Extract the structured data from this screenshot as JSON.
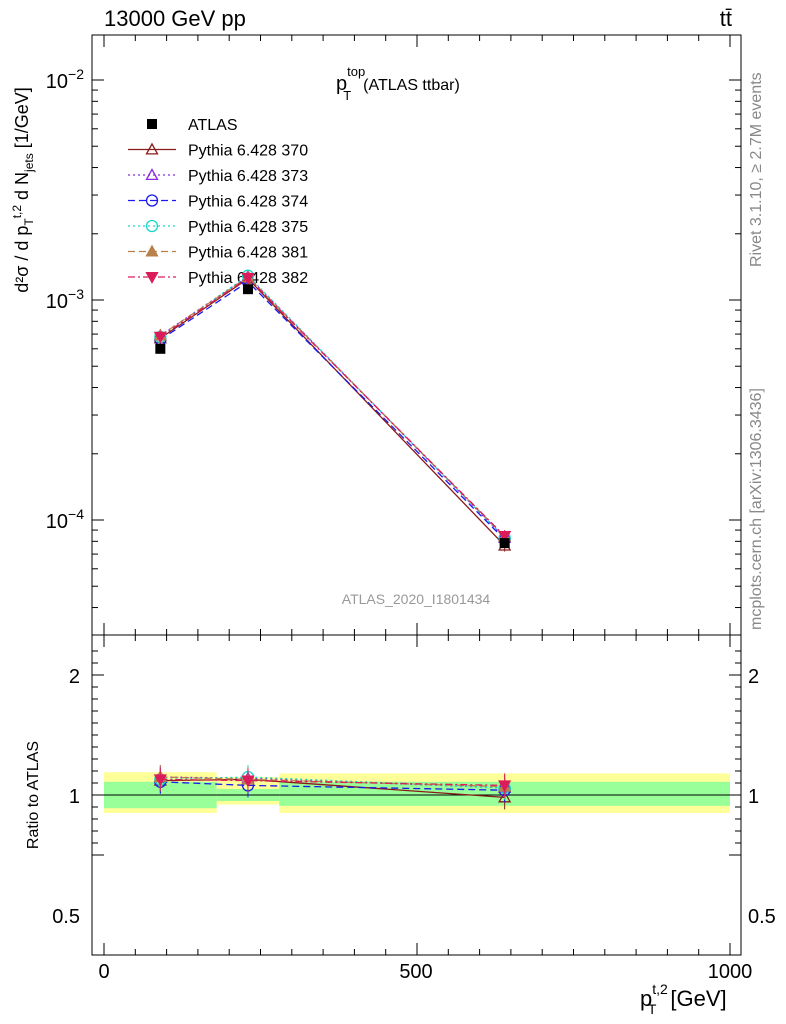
{
  "header": {
    "left": "13000 GeV pp",
    "right": "tt̄"
  },
  "side_text": {
    "rivet": "Rivet 3.1.10, ≥ 2.7M events",
    "mcplots": "mcplots.cern.ch [arXiv:1306.3436]"
  },
  "watermark": "ATLAS_2020_I1801434",
  "main_title": {
    "base": "p",
    "sup": "top",
    "sub": "T",
    "suffix": "(ATLAS ttbar)"
  },
  "main_ylabel": "d^2σ/d p_T^{t,2} d N_jets  [1/GeV]",
  "ratio_ylabel": "Ratio to ATLAS",
  "xlabel": {
    "base": "p",
    "sup": "t,2",
    "sub": "T",
    "unit": "[GeV]"
  },
  "colors": {
    "band_inner": "#99ff99",
    "band_outer": "#ffff99"
  },
  "chart_data": [
    {
      "type": "line",
      "panel": "main",
      "xlim": [
        -20,
        1020
      ],
      "ylim": [
        3e-05,
        0.016
      ],
      "log_y": true,
      "x_ticks": [
        "0",
        "500",
        "1000"
      ],
      "y_ticks": [
        "10^-4",
        "10^-3",
        "10^-2"
      ],
      "legend_position": "top-left",
      "x": [
        90,
        230,
        640
      ],
      "data": {
        "name": "ATLAS",
        "values": [
          0.0006,
          0.00112,
          7.85e-05
        ],
        "color": "#000000"
      },
      "series": [
        {
          "name": "Pythia 6.428 370",
          "color": "#8b1a1a",
          "marker": "triangle-open",
          "dash": "",
          "values": [
            0.00067,
            0.00125,
            7.65e-05
          ]
        },
        {
          "name": "Pythia 6.428 373",
          "color": "#8a2be2",
          "marker": "triangle-open",
          "dash": "2,3",
          "values": [
            0.00069,
            0.00128,
            8.3e-05
          ]
        },
        {
          "name": "Pythia 6.428 374",
          "color": "#1a1aee",
          "marker": "circle-open",
          "dash": "7,4",
          "values": [
            0.00066,
            0.00121,
            8.15e-05
          ]
        },
        {
          "name": "Pythia 6.428 375",
          "color": "#1ad8c8",
          "marker": "circle-open",
          "dash": "2,3",
          "values": [
            0.00068,
            0.00129,
            8.3e-05
          ]
        },
        {
          "name": "Pythia 6.428 381",
          "color": "#b8804a",
          "marker": "triangle-filled",
          "dash": "7,4",
          "values": [
            0.00069,
            0.00127,
            8.4e-05
          ]
        },
        {
          "name": "Pythia 6.428 382",
          "color": "#dc1c5a",
          "marker": "triangle-down-filled",
          "dash": "7,3,2,3",
          "values": [
            0.00068,
            0.00126,
            8.45e-05
          ]
        }
      ]
    },
    {
      "type": "line",
      "panel": "ratio",
      "xlim": [
        -20,
        1020
      ],
      "ylim": [
        0.4,
        2.3
      ],
      "x_ticks": [
        "0",
        "500",
        "1000"
      ],
      "y_ticks": [
        "0.5",
        "1",
        "2"
      ],
      "x": [
        90,
        230,
        640
      ],
      "reference": 1.0,
      "bands": [
        {
          "x_range": [
            0,
            180
          ],
          "inner": [
            0.89,
            1.11
          ],
          "outer": [
            0.85,
            1.19
          ]
        },
        {
          "x_range": [
            180,
            280
          ],
          "inner": [
            0.95,
            1.05
          ],
          "outer": [
            0.92,
            1.15
          ]
        },
        {
          "x_range": [
            280,
            1000
          ],
          "inner": [
            0.91,
            1.11
          ],
          "outer": [
            0.85,
            1.18
          ]
        }
      ],
      "series": [
        {
          "name": "Pythia 6.428 370",
          "values": [
            1.12,
            1.13,
            0.98
          ]
        },
        {
          "name": "Pythia 6.428 373",
          "values": [
            1.15,
            1.14,
            1.06
          ]
        },
        {
          "name": "Pythia 6.428 374",
          "values": [
            1.11,
            1.08,
            1.04
          ]
        },
        {
          "name": "Pythia 6.428 375",
          "values": [
            1.13,
            1.15,
            1.06
          ]
        },
        {
          "name": "Pythia 6.428 381",
          "values": [
            1.15,
            1.13,
            1.07
          ]
        },
        {
          "name": "Pythia 6.428 382",
          "values": [
            1.13,
            1.12,
            1.08
          ]
        }
      ]
    }
  ]
}
